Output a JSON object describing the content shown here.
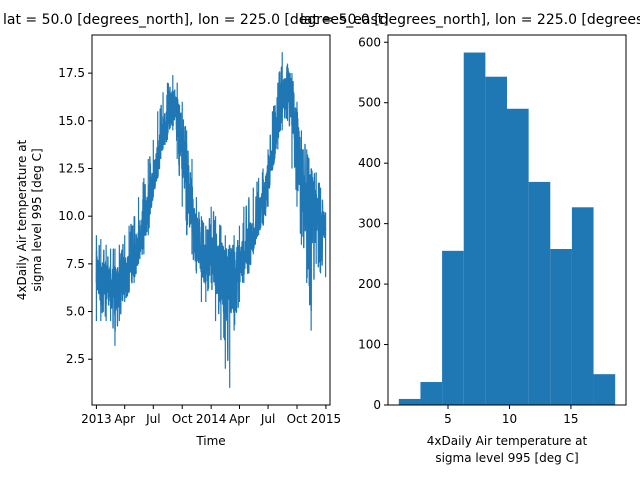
{
  "colors": {
    "series": "#1f77b4",
    "axes": "#000000",
    "background": "#ffffff"
  },
  "chart_data": [
    {
      "type": "line",
      "title": "lat = 50.0 [degrees_north], lon = 225.0 [degrees_east]",
      "xlabel": "Time",
      "ylabel_lines": [
        "4xDaily Air temperature at",
        "sigma level 995 [deg C]"
      ],
      "xticks": [
        "2013",
        "Apr",
        "Jul",
        "Oct",
        "2014",
        "Apr",
        "Jul",
        "Oct",
        "2015"
      ],
      "yticks": [
        "2.5",
        "5.0",
        "7.5",
        "10.0",
        "12.5",
        "15.0",
        "17.5"
      ],
      "ylim": [
        0.1,
        19.5
      ],
      "xlim": [
        "2012-12-18",
        "2015-01-14"
      ],
      "grid": false,
      "x_dates": [
        "2013-01-01",
        "2013-01-15",
        "2013-02-01",
        "2013-02-15",
        "2013-03-01",
        "2013-03-15",
        "2013-04-01",
        "2013-04-15",
        "2013-05-01",
        "2013-05-15",
        "2013-06-01",
        "2013-06-15",
        "2013-07-01",
        "2013-07-15",
        "2013-08-01",
        "2013-08-15",
        "2013-09-01",
        "2013-09-15",
        "2013-10-01",
        "2013-10-15",
        "2013-11-01",
        "2013-11-15",
        "2013-12-01",
        "2013-12-15",
        "2014-01-01",
        "2014-01-15",
        "2014-02-01",
        "2014-02-15",
        "2014-03-01",
        "2014-03-15",
        "2014-04-01",
        "2014-04-15",
        "2014-05-01",
        "2014-05-15",
        "2014-06-01",
        "2014-06-15",
        "2014-07-01",
        "2014-07-15",
        "2014-08-01",
        "2014-08-15",
        "2014-09-01",
        "2014-09-15",
        "2014-10-01",
        "2014-10-15",
        "2014-11-01",
        "2014-11-15",
        "2014-12-01",
        "2014-12-15",
        "2014-12-31"
      ],
      "y_mean": [
        7.0,
        6.5,
        6.5,
        6.3,
        6.0,
        6.5,
        7.0,
        7.0,
        7.8,
        8.5,
        9.5,
        10.5,
        12.0,
        13.0,
        14.5,
        15.0,
        16.0,
        15.5,
        13.5,
        12.0,
        10.5,
        9.0,
        8.0,
        7.5,
        8.0,
        7.5,
        7.0,
        6.5,
        6.5,
        7.0,
        7.5,
        8.0,
        8.5,
        9.0,
        10.0,
        10.5,
        12.0,
        13.0,
        15.0,
        16.0,
        16.5,
        16.0,
        14.0,
        12.0,
        10.5,
        10.0,
        10.0,
        9.5,
        9.0
      ],
      "y_low": [
        4.5,
        4.5,
        4.5,
        4.5,
        3.2,
        4.5,
        5.5,
        6.0,
        6.5,
        7.5,
        8.0,
        9.0,
        11.0,
        12.0,
        13.5,
        14.0,
        14.5,
        13.0,
        10.5,
        9.0,
        8.0,
        7.0,
        5.5,
        5.5,
        6.5,
        4.5,
        3.5,
        2.0,
        1.0,
        4.0,
        5.5,
        6.5,
        7.0,
        8.0,
        9.0,
        9.5,
        10.5,
        12.5,
        13.5,
        14.5,
        15.0,
        12.5,
        10.5,
        8.5,
        6.5,
        4.0,
        7.5,
        7.0,
        6.8
      ],
      "y_high": [
        9.0,
        8.8,
        8.5,
        8.3,
        8.3,
        8.5,
        9.0,
        9.5,
        10.0,
        11.0,
        12.0,
        13.0,
        14.0,
        15.5,
        16.5,
        17.0,
        17.4,
        17.0,
        16.0,
        14.5,
        13.0,
        11.0,
        10.0,
        9.5,
        10.5,
        10.0,
        9.5,
        9.0,
        8.5,
        9.0,
        9.5,
        10.5,
        11.0,
        11.5,
        12.0,
        12.5,
        13.5,
        15.5,
        17.0,
        18.6,
        18.0,
        17.5,
        16.0,
        14.5,
        13.5,
        12.5,
        12.3,
        11.5,
        10.2
      ]
    },
    {
      "type": "bar",
      "subtype": "histogram",
      "title": "lat = 50.0 [degrees_north], lon = 225.0 [degrees_east]",
      "xlabel_lines": [
        "4xDaily Air temperature at",
        "sigma level 995 [deg C]"
      ],
      "ylabel": "",
      "bin_edges": [
        1.0,
        2.76,
        4.52,
        6.28,
        8.04,
        9.8,
        11.56,
        13.32,
        15.08,
        16.84,
        18.6
      ],
      "values": [
        10,
        38,
        255,
        583,
        543,
        490,
        369,
        258,
        327,
        51
      ],
      "xticks": [
        5,
        10,
        15
      ],
      "yticks": [
        0,
        100,
        200,
        300,
        400,
        500,
        600
      ],
      "xlim": [
        0.12,
        19.48
      ],
      "ylim": [
        0,
        612
      ],
      "grid": false
    }
  ]
}
